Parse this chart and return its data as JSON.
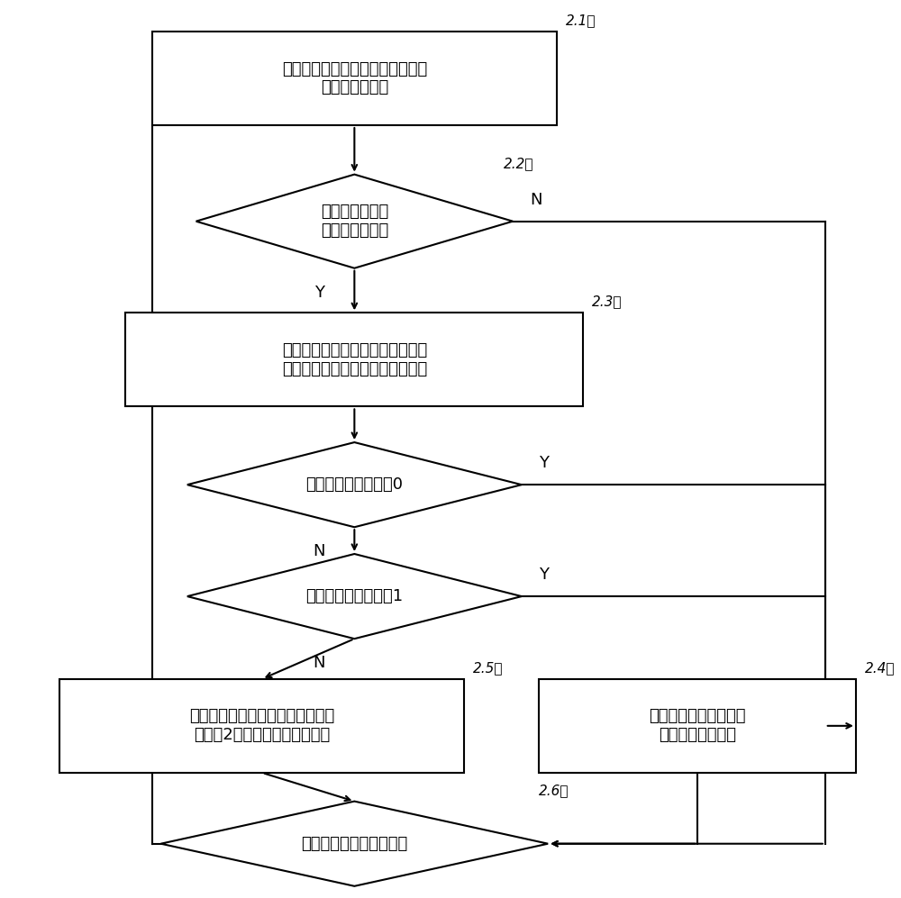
{
  "bg_color": "#ffffff",
  "line_color": "#000000",
  "text_color": "#000000",
  "font_size": 13,
  "label_font_size": 11,
  "box1_text": "从配电网络中选择一条供电链路作\n为当前供电链路",
  "box1_label": "2.1）",
  "diamond2_text": "当前供电链路中\n存在告警装置？",
  "diamond2_label": "2.2）",
  "box3_text": "统计当前供电链路中各个设备上的\n告警装置输出的告警信息最大数量",
  "box3_label": "2.3）",
  "diamond4_text": "告警信息最大数量为0",
  "diamond5_text": "告警信息最大数量为1",
  "box5_text": "针对当前供电链路中上传告警信息\n数量为2的设备及下游设备分层",
  "box5_label": "2.5）",
  "box4_text": "针对当前供电链路中的\n所有设备进行分层",
  "box4_label": "2.4）",
  "diamond6_text": "所有供电链路分层完毕？",
  "diamond6_label": "2.6）",
  "label_N": "N",
  "label_Y": "Y"
}
